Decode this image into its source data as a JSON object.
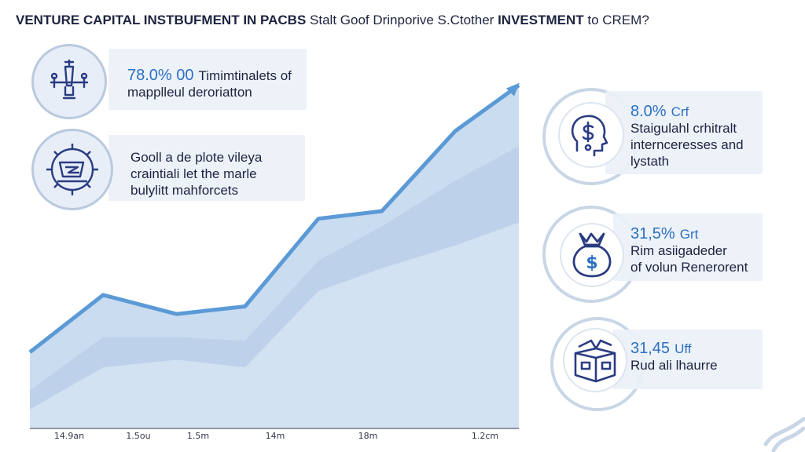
{
  "title": {
    "bold_a": "VENTURE CAPITAL INSTBUFMENT IN PACBS",
    "plain": " Stalt Goof Drinporive S.Ctother ",
    "bold_b": "INVESTMENT",
    "tail": " to CREM?"
  },
  "left_cards": [
    {
      "num": "78.0% 00",
      "line1": "Timimtinalets of",
      "line2": "mapplleul deroriatton",
      "icon": "wind-turbine-icon"
    },
    {
      "num": "",
      "line1": "Gooll a de plote vileya",
      "line2": "craintiali let the marle",
      "line3": "bulylitt mahforcets",
      "icon": "gear-chip-icon"
    }
  ],
  "right_cards": [
    {
      "num": "8.0%",
      "unit": "Crf",
      "line1": "Staigulahl crhitralt",
      "line2": "internceresses and",
      "line3": "lystath",
      "icon": "head-dollar-icon"
    },
    {
      "num": "31,5%",
      "unit": "Grt",
      "line1": "Rim asiigadeder",
      "line2": "of volun Renerorent",
      "icon": "money-bag-icon"
    },
    {
      "num": "31,45",
      "unit": "Uff",
      "line1": "Rud ali lhaurre",
      "icon": "open-box-icon"
    }
  ],
  "colors": {
    "line": "#5b9ad6",
    "area_outer": "#c4d8ee",
    "area_mid": "#b2cbe6",
    "area_inner": "#dbe7f4",
    "accent": "#2c6fc2",
    "icon": "#2a3c82"
  },
  "chart_data": {
    "type": "area",
    "title": "",
    "xlabel": "",
    "ylabel": "",
    "grid": false,
    "categories": [
      "14.9an",
      "1.5ou",
      "1.5m",
      "14m",
      "18m",
      "1.2cm"
    ],
    "series": [
      {
        "values": [
          20,
          35,
          30,
          32,
          55,
          57,
          78,
          90
        ]
      },
      {
        "values": [
          10,
          24,
          24,
          23,
          44,
          53,
          65,
          74
        ]
      },
      {
        "values": [
          5,
          16,
          18,
          16,
          36,
          42,
          48,
          54
        ]
      }
    ],
    "x": [
      0,
      0.15,
      0.3,
      0.44,
      0.59,
      0.72,
      0.87,
      1.0
    ],
    "ylim": [
      0,
      100
    ]
  }
}
